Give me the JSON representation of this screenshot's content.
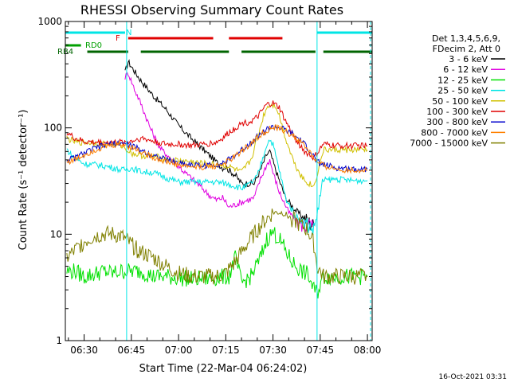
{
  "chart_data": {
    "type": "line",
    "title": "RHESSI Observing Summary Count Rates",
    "xlabel": "Start Time (22-Mar-04 06:24:02)",
    "ylabel": "Count Rate (s⁻¹ detector⁻¹)",
    "footer_date": "16-Oct-2021 03:31",
    "y_scale": "log",
    "ylim": [
      1,
      1000
    ],
    "xlim_minutes": [
      24.03,
      121.5
    ],
    "x_ticks": [
      {
        "label": "06:30",
        "minute": 30
      },
      {
        "label": "06:45",
        "minute": 45
      },
      {
        "label": "07:00",
        "minute": 60
      },
      {
        "label": "07:15",
        "minute": 75
      },
      {
        "label": "07:30",
        "minute": 90
      },
      {
        "label": "07:45",
        "minute": 105
      },
      {
        "label": "08:00",
        "minute": 120
      }
    ],
    "y_ticks": [
      {
        "label": "1",
        "value": 1
      },
      {
        "label": "10",
        "value": 10
      },
      {
        "label": "100",
        "value": 100
      },
      {
        "label": "1000",
        "value": 1000
      }
    ],
    "legend": {
      "placement": "right",
      "header": [
        "Det 1,3,4,5,6,9,",
        "FDecim 2, Att 0"
      ]
    },
    "flags": [
      {
        "label": "N",
        "color": "#00e5e5",
        "segments": [
          [
            24.03,
            43
          ],
          [
            104,
            121.5
          ]
        ]
      },
      {
        "label": "F",
        "color": "#e00000",
        "segments": [
          [
            44,
            71
          ],
          [
            76,
            93
          ]
        ]
      },
      {
        "label": "RD0",
        "color": "#00a000",
        "segments": [
          [
            24.03,
            29
          ]
        ]
      },
      {
        "label": "RB4",
        "color": "#006400",
        "segments": [
          [
            31,
            44
          ],
          [
            48,
            76
          ],
          [
            80,
            103.5
          ],
          [
            106,
            121.5
          ]
        ]
      }
    ],
    "vertical_markers": [
      {
        "minute": 43.5,
        "color": "#00e5e5",
        "style": "solid"
      },
      {
        "minute": 104,
        "color": "#00e5e5",
        "style": "solid"
      },
      {
        "minute": 121,
        "color": "#00e5e5",
        "style": "dashed"
      }
    ],
    "series": [
      {
        "name": "3 - 6 keV",
        "color": "#000000",
        "points": [
          [
            43,
            330
          ],
          [
            44,
            420
          ],
          [
            46,
            340
          ],
          [
            48,
            280
          ],
          [
            52,
            200
          ],
          [
            56,
            150
          ],
          [
            60,
            105
          ],
          [
            64,
            80
          ],
          [
            68,
            62
          ],
          [
            72,
            48
          ],
          [
            74,
            42
          ],
          [
            75,
            43
          ],
          [
            76,
            40
          ],
          [
            78,
            36
          ],
          [
            80,
            30
          ],
          [
            84,
            30
          ],
          [
            86,
            40
          ],
          [
            88,
            56
          ],
          [
            89,
            60
          ],
          [
            90,
            48
          ],
          [
            92,
            32
          ],
          [
            94,
            22
          ],
          [
            97,
            17
          ],
          [
            100,
            14
          ],
          [
            103,
            12
          ]
        ]
      },
      {
        "name": "6 - 12 keV",
        "color": "#e000e0",
        "points": [
          [
            43,
            300
          ],
          [
            44,
            330
          ],
          [
            46,
            230
          ],
          [
            48,
            170
          ],
          [
            51,
            100
          ],
          [
            54,
            65
          ],
          [
            58,
            50
          ],
          [
            62,
            38
          ],
          [
            66,
            30
          ],
          [
            70,
            23
          ],
          [
            72,
            21
          ],
          [
            74,
            22
          ],
          [
            75,
            20
          ],
          [
            76,
            18
          ],
          [
            78,
            19
          ],
          [
            80,
            20
          ],
          [
            84,
            22
          ],
          [
            86,
            33
          ],
          [
            88,
            45
          ],
          [
            89,
            50
          ],
          [
            90,
            38
          ],
          [
            92,
            25
          ],
          [
            95,
            16
          ],
          [
            98,
            13
          ],
          [
            100,
            12
          ],
          [
            103,
            12
          ]
        ]
      },
      {
        "name": "12 - 25 keV",
        "color": "#00e000",
        "points": [
          [
            24.5,
            4.5
          ],
          [
            27,
            4.5
          ],
          [
            30,
            4
          ],
          [
            33,
            4.2
          ],
          [
            36,
            4.5
          ],
          [
            39,
            4.3
          ],
          [
            42,
            4.5
          ],
          [
            45,
            4.5
          ],
          [
            48,
            4.5
          ],
          [
            52,
            4
          ],
          [
            56,
            4
          ],
          [
            60,
            3.9
          ],
          [
            64,
            3.8
          ],
          [
            68,
            3.8
          ],
          [
            72,
            3.9
          ],
          [
            75,
            4
          ],
          [
            76,
            4
          ],
          [
            78,
            6
          ],
          [
            80,
            3.5
          ],
          [
            83,
            4
          ],
          [
            86,
            6
          ],
          [
            88,
            9
          ],
          [
            90,
            10.5
          ],
          [
            92,
            9
          ],
          [
            94,
            7
          ],
          [
            96,
            5.5
          ],
          [
            99,
            4.5
          ],
          [
            101,
            4.2
          ],
          [
            103,
            3
          ],
          [
            104,
            2.8
          ],
          [
            106,
            4
          ],
          [
            110,
            4
          ],
          [
            115,
            4
          ],
          [
            120,
            4
          ]
        ]
      },
      {
        "name": "25 - 50 keV",
        "color": "#00e5e5",
        "points": [
          [
            24.5,
            63
          ],
          [
            26,
            55
          ],
          [
            28,
            50
          ],
          [
            30,
            46
          ],
          [
            34,
            45
          ],
          [
            38,
            43
          ],
          [
            42,
            40
          ],
          [
            45,
            42
          ],
          [
            48,
            39
          ],
          [
            52,
            38
          ],
          [
            56,
            34
          ],
          [
            60,
            31
          ],
          [
            64,
            31
          ],
          [
            68,
            31
          ],
          [
            72,
            31
          ],
          [
            75,
            30
          ],
          [
            77,
            29
          ],
          [
            80,
            27
          ],
          [
            83,
            30
          ],
          [
            85,
            35
          ],
          [
            87,
            55
          ],
          [
            88,
            70
          ],
          [
            89,
            78
          ],
          [
            90,
            70
          ],
          [
            92,
            40
          ],
          [
            94,
            22
          ],
          [
            97,
            15
          ],
          [
            100,
            13
          ],
          [
            103,
            11
          ],
          [
            106,
            32
          ],
          [
            110,
            33
          ],
          [
            115,
            32
          ],
          [
            120,
            32
          ]
        ]
      },
      {
        "name": "50 - 100 keV",
        "color": "#d0c000",
        "points": [
          [
            24.5,
            80
          ],
          [
            26,
            76
          ],
          [
            28,
            73
          ],
          [
            30,
            73
          ],
          [
            34,
            72
          ],
          [
            38,
            70
          ],
          [
            42,
            68
          ],
          [
            45,
            58
          ],
          [
            48,
            55
          ],
          [
            52,
            54
          ],
          [
            56,
            51
          ],
          [
            60,
            49
          ],
          [
            64,
            48
          ],
          [
            68,
            46
          ],
          [
            72,
            45
          ],
          [
            75,
            44
          ],
          [
            77,
            42
          ],
          [
            80,
            38
          ],
          [
            83,
            50
          ],
          [
            85,
            80
          ],
          [
            87,
            130
          ],
          [
            88,
            155
          ],
          [
            89,
            165
          ],
          [
            90,
            165
          ],
          [
            91,
            160
          ],
          [
            92,
            130
          ],
          [
            94,
            80
          ],
          [
            97,
            45
          ],
          [
            100,
            32
          ],
          [
            103,
            28
          ],
          [
            106,
            62
          ],
          [
            110,
            62
          ],
          [
            115,
            62
          ],
          [
            120,
            62
          ]
        ]
      },
      {
        "name": "100 - 300 keV",
        "color": "#e00000",
        "points": [
          [
            24.5,
            90
          ],
          [
            27,
            80
          ],
          [
            30,
            74
          ],
          [
            34,
            73
          ],
          [
            38,
            73
          ],
          [
            42,
            73
          ],
          [
            45,
            75
          ],
          [
            48,
            80
          ],
          [
            52,
            75
          ],
          [
            56,
            70
          ],
          [
            60,
            70
          ],
          [
            64,
            68
          ],
          [
            68,
            70
          ],
          [
            72,
            73
          ],
          [
            74,
            80
          ],
          [
            76,
            90
          ],
          [
            78,
            100
          ],
          [
            80,
            110
          ],
          [
            83,
            115
          ],
          [
            85,
            125
          ],
          [
            87,
            150
          ],
          [
            88,
            165
          ],
          [
            90,
            170
          ],
          [
            92,
            155
          ],
          [
            94,
            115
          ],
          [
            97,
            80
          ],
          [
            100,
            60
          ],
          [
            103,
            52
          ],
          [
            106,
            70
          ],
          [
            110,
            68
          ],
          [
            115,
            68
          ],
          [
            120,
            68
          ]
        ]
      },
      {
        "name": "300 - 800 keV",
        "color": "#0000cc",
        "points": [
          [
            24.5,
            50
          ],
          [
            27,
            52
          ],
          [
            30,
            58
          ],
          [
            34,
            65
          ],
          [
            38,
            70
          ],
          [
            42,
            72
          ],
          [
            45,
            68
          ],
          [
            48,
            62
          ],
          [
            52,
            55
          ],
          [
            56,
            50
          ],
          [
            60,
            47
          ],
          [
            64,
            45
          ],
          [
            68,
            44
          ],
          [
            72,
            45
          ],
          [
            75,
            48
          ],
          [
            78,
            55
          ],
          [
            81,
            65
          ],
          [
            84,
            78
          ],
          [
            87,
            92
          ],
          [
            89,
            100
          ],
          [
            91,
            102
          ],
          [
            93,
            98
          ],
          [
            96,
            88
          ],
          [
            99,
            75
          ],
          [
            102,
            60
          ],
          [
            104,
            48
          ],
          [
            106,
            45
          ],
          [
            110,
            42
          ],
          [
            115,
            41
          ],
          [
            120,
            41
          ]
        ]
      },
      {
        "name": "800 - 7000 keV",
        "color": "#ff8000",
        "points": [
          [
            24.5,
            48
          ],
          [
            27,
            50
          ],
          [
            30,
            56
          ],
          [
            34,
            63
          ],
          [
            38,
            68
          ],
          [
            42,
            70
          ],
          [
            45,
            66
          ],
          [
            48,
            60
          ],
          [
            52,
            53
          ],
          [
            56,
            48
          ],
          [
            60,
            45
          ],
          [
            64,
            43
          ],
          [
            68,
            43
          ],
          [
            72,
            44
          ],
          [
            75,
            47
          ],
          [
            78,
            54
          ],
          [
            81,
            64
          ],
          [
            84,
            76
          ],
          [
            87,
            90
          ],
          [
            89,
            98
          ],
          [
            91,
            100
          ],
          [
            93,
            96
          ],
          [
            96,
            86
          ],
          [
            99,
            73
          ],
          [
            102,
            58
          ],
          [
            104,
            47
          ],
          [
            106,
            44
          ],
          [
            110,
            41
          ],
          [
            115,
            40
          ],
          [
            120,
            40
          ]
        ]
      },
      {
        "name": "7000 - 15000 keV",
        "color": "#808000",
        "points": [
          [
            24.5,
            6
          ],
          [
            27,
            7
          ],
          [
            30,
            8.5
          ],
          [
            33,
            9.5
          ],
          [
            36,
            10
          ],
          [
            39,
            10
          ],
          [
            42,
            9.5
          ],
          [
            44,
            8.5
          ],
          [
            46,
            7.5
          ],
          [
            48,
            6.8
          ],
          [
            52,
            6
          ],
          [
            56,
            5
          ],
          [
            60,
            4.3
          ],
          [
            64,
            4
          ],
          [
            68,
            4
          ],
          [
            72,
            4
          ],
          [
            75,
            4.3
          ],
          [
            78,
            5.5
          ],
          [
            81,
            7.5
          ],
          [
            84,
            10
          ],
          [
            87,
            13
          ],
          [
            90,
            16
          ],
          [
            93,
            16
          ],
          [
            96,
            14
          ],
          [
            99,
            12
          ],
          [
            101,
            11
          ],
          [
            103,
            8
          ],
          [
            104,
            5
          ],
          [
            106,
            4
          ],
          [
            110,
            4
          ],
          [
            115,
            4
          ],
          [
            120,
            4
          ]
        ]
      }
    ]
  }
}
